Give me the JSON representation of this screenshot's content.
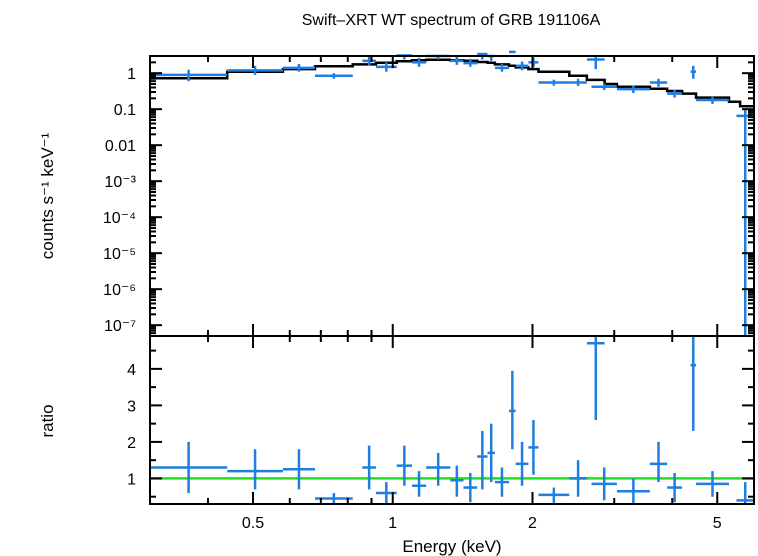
{
  "chart_data": {
    "type": "scatter",
    "title": "Swift–XRT WT spectrum of GRB 191106A",
    "xlabel": "Energy (keV)",
    "x_scale": "log",
    "xlim": [
      0.3,
      6
    ],
    "x_ticks": [
      {
        "value": 0.5,
        "label": "0.5"
      },
      {
        "value": 1,
        "label": "1"
      },
      {
        "value": 2,
        "label": "2"
      },
      {
        "value": 5,
        "label": "5"
      }
    ],
    "top_panel": {
      "ylabel": "counts s⁻¹ keV⁻¹",
      "y_scale": "log",
      "ylim": [
        5e-08,
        3
      ],
      "y_ticks": [
        {
          "value": 1,
          "label": "1"
        },
        {
          "value": 0.1,
          "label": "0.1"
        },
        {
          "value": 0.01,
          "label": "0.01"
        },
        {
          "value": 0.001,
          "label": "10⁻³"
        },
        {
          "value": 0.0001,
          "label": "10⁻⁴"
        },
        {
          "value": 1e-05,
          "label": "10⁻⁵"
        },
        {
          "value": 1e-06,
          "label": "10⁻⁶"
        },
        {
          "value": 1e-07,
          "label": "10⁻⁷"
        }
      ],
      "series": [
        {
          "kind": "data",
          "color": "#1f7fe0",
          "points": [
            {
              "xlo": 0.3,
              "xhi": 0.44,
              "y": 0.9,
              "ylo": 0.6,
              "yhi": 1.25
            },
            {
              "xlo": 0.44,
              "xhi": 0.58,
              "y": 1.2,
              "ylo": 0.9,
              "yhi": 1.6
            },
            {
              "xlo": 0.58,
              "xhi": 0.68,
              "y": 1.4,
              "ylo": 1.1,
              "yhi": 1.8
            },
            {
              "xlo": 0.68,
              "xhi": 0.82,
              "y": 0.85,
              "ylo": 0.7,
              "yhi": 1.0
            },
            {
              "xlo": 0.86,
              "xhi": 0.92,
              "y": 2.2,
              "ylo": 1.6,
              "yhi": 3.2
            },
            {
              "xlo": 0.92,
              "xhi": 1.02,
              "y": 1.5,
              "ylo": 1.1,
              "yhi": 2.0
            },
            {
              "xlo": 1.02,
              "xhi": 1.1,
              "y": 3.1,
              "ylo": 2.4,
              "yhi": 3.9
            },
            {
              "xlo": 1.1,
              "xhi": 1.18,
              "y": 2.0,
              "ylo": 1.5,
              "yhi": 2.7
            },
            {
              "xlo": 1.18,
              "xhi": 1.33,
              "y": 3.0,
              "ylo": 2.4,
              "yhi": 3.7
            },
            {
              "xlo": 1.33,
              "xhi": 1.42,
              "y": 2.2,
              "ylo": 1.7,
              "yhi": 2.9
            },
            {
              "xlo": 1.42,
              "xhi": 1.52,
              "y": 1.9,
              "ylo": 1.5,
              "yhi": 2.5
            },
            {
              "xlo": 1.52,
              "xhi": 1.6,
              "y": 3.4,
              "ylo": 2.4,
              "yhi": 4.6
            },
            {
              "xlo": 1.6,
              "xhi": 1.66,
              "y": 3.0,
              "ylo": 2.2,
              "yhi": 4.0
            },
            {
              "xlo": 1.66,
              "xhi": 1.78,
              "y": 1.4,
              "ylo": 1.1,
              "yhi": 1.8
            },
            {
              "xlo": 1.78,
              "xhi": 1.84,
              "y": 3.9,
              "ylo": 3.0,
              "yhi": 5.2
            },
            {
              "xlo": 1.84,
              "xhi": 1.96,
              "y": 1.6,
              "ylo": 1.2,
              "yhi": 2.1
            },
            {
              "xlo": 1.96,
              "xhi": 2.06,
              "y": 2.0,
              "ylo": 1.5,
              "yhi": 2.7
            },
            {
              "xlo": 2.06,
              "xhi": 2.4,
              "y": 0.55,
              "ylo": 0.45,
              "yhi": 0.66
            },
            {
              "xlo": 2.4,
              "xhi": 2.62,
              "y": 0.55,
              "ylo": 0.44,
              "yhi": 0.7
            },
            {
              "xlo": 2.62,
              "xhi": 2.86,
              "y": 2.4,
              "ylo": 1.3,
              "yhi": 4.2
            },
            {
              "xlo": 2.68,
              "xhi": 3.04,
              "y": 0.42,
              "ylo": 0.34,
              "yhi": 0.52
            },
            {
              "xlo": 3.04,
              "xhi": 3.58,
              "y": 0.36,
              "ylo": 0.28,
              "yhi": 0.45
            },
            {
              "xlo": 3.58,
              "xhi": 3.9,
              "y": 0.55,
              "ylo": 0.42,
              "yhi": 0.7
            },
            {
              "xlo": 3.9,
              "xhi": 4.2,
              "y": 0.27,
              "ylo": 0.21,
              "yhi": 0.34
            },
            {
              "xlo": 4.38,
              "xhi": 4.5,
              "y": 1.1,
              "ylo": 0.7,
              "yhi": 1.6
            },
            {
              "xlo": 4.5,
              "xhi": 5.3,
              "y": 0.18,
              "ylo": 0.14,
              "yhi": 0.23
            },
            {
              "xlo": 5.5,
              "xhi": 6.0,
              "y": 0.065,
              "ylo": 5e-08,
              "yhi": 0.1
            }
          ]
        },
        {
          "kind": "model",
          "color": "#000000",
          "steps": [
            {
              "xlo": 0.3,
              "xhi": 0.44,
              "y": 0.72
            },
            {
              "xlo": 0.44,
              "xhi": 0.58,
              "y": 1.1
            },
            {
              "xlo": 0.58,
              "xhi": 0.68,
              "y": 1.3
            },
            {
              "xlo": 0.68,
              "xhi": 0.82,
              "y": 1.55
            },
            {
              "xlo": 0.82,
              "xhi": 0.92,
              "y": 1.75
            },
            {
              "xlo": 0.92,
              "xhi": 1.02,
              "y": 1.95
            },
            {
              "xlo": 1.02,
              "xhi": 1.1,
              "y": 2.15
            },
            {
              "xlo": 1.1,
              "xhi": 1.18,
              "y": 2.3
            },
            {
              "xlo": 1.18,
              "xhi": 1.33,
              "y": 2.35
            },
            {
              "xlo": 1.33,
              "xhi": 1.42,
              "y": 2.3
            },
            {
              "xlo": 1.42,
              "xhi": 1.52,
              "y": 2.2
            },
            {
              "xlo": 1.52,
              "xhi": 1.6,
              "y": 2.05
            },
            {
              "xlo": 1.6,
              "xhi": 1.66,
              "y": 1.95
            },
            {
              "xlo": 1.66,
              "xhi": 1.78,
              "y": 1.75
            },
            {
              "xlo": 1.78,
              "xhi": 1.84,
              "y": 1.6
            },
            {
              "xlo": 1.84,
              "xhi": 1.96,
              "y": 1.45
            },
            {
              "xlo": 1.96,
              "xhi": 2.06,
              "y": 1.3
            },
            {
              "xlo": 2.06,
              "xhi": 2.4,
              "y": 1.1
            },
            {
              "xlo": 2.4,
              "xhi": 2.62,
              "y": 0.85
            },
            {
              "xlo": 2.62,
              "xhi": 2.86,
              "y": 0.65
            },
            {
              "xlo": 2.86,
              "xhi": 3.04,
              "y": 0.5
            },
            {
              "xlo": 3.04,
              "xhi": 3.58,
              "y": 0.42
            },
            {
              "xlo": 3.58,
              "xhi": 3.9,
              "y": 0.37
            },
            {
              "xlo": 3.9,
              "xhi": 4.2,
              "y": 0.32
            },
            {
              "xlo": 4.2,
              "xhi": 4.5,
              "y": 0.27
            },
            {
              "xlo": 4.5,
              "xhi": 5.3,
              "y": 0.21
            },
            {
              "xlo": 5.3,
              "xhi": 5.6,
              "y": 0.16
            },
            {
              "xlo": 5.6,
              "xhi": 6.0,
              "y": 0.12
            }
          ]
        }
      ]
    },
    "bottom_panel": {
      "ylabel": "ratio",
      "y_scale": "linear",
      "ylim": [
        0.3,
        4.9
      ],
      "y_ticks": [
        {
          "value": 1,
          "label": "1"
        },
        {
          "value": 2,
          "label": "2"
        },
        {
          "value": 3,
          "label": "3"
        },
        {
          "value": 4,
          "label": "4"
        }
      ],
      "reference_line": {
        "y": 1,
        "color": "#22e022"
      },
      "series": [
        {
          "kind": "data",
          "color": "#1f7fe0",
          "points": [
            {
              "xlo": 0.3,
              "xhi": 0.44,
              "y": 1.3,
              "ylo": 0.6,
              "yhi": 2.0
            },
            {
              "xlo": 0.44,
              "xhi": 0.58,
              "y": 1.2,
              "ylo": 0.7,
              "yhi": 1.8
            },
            {
              "xlo": 0.58,
              "xhi": 0.68,
              "y": 1.25,
              "ylo": 0.7,
              "yhi": 1.8
            },
            {
              "xlo": 0.68,
              "xhi": 0.82,
              "y": 0.45,
              "ylo": 0.3,
              "yhi": 0.6
            },
            {
              "xlo": 0.86,
              "xhi": 0.92,
              "y": 1.3,
              "ylo": 0.7,
              "yhi": 1.9
            },
            {
              "xlo": 0.92,
              "xhi": 1.02,
              "y": 0.6,
              "ylo": 0.3,
              "yhi": 0.9
            },
            {
              "xlo": 1.02,
              "xhi": 1.1,
              "y": 1.35,
              "ylo": 0.8,
              "yhi": 1.9
            },
            {
              "xlo": 1.1,
              "xhi": 1.18,
              "y": 0.8,
              "ylo": 0.5,
              "yhi": 1.2
            },
            {
              "xlo": 1.18,
              "xhi": 1.33,
              "y": 1.3,
              "ylo": 0.8,
              "yhi": 1.7
            },
            {
              "xlo": 1.33,
              "xhi": 1.42,
              "y": 0.95,
              "ylo": 0.5,
              "yhi": 1.35
            },
            {
              "xlo": 1.42,
              "xhi": 1.52,
              "y": 0.75,
              "ylo": 0.35,
              "yhi": 1.15
            },
            {
              "xlo": 1.52,
              "xhi": 1.6,
              "y": 1.6,
              "ylo": 0.7,
              "yhi": 2.3
            },
            {
              "xlo": 1.6,
              "xhi": 1.66,
              "y": 1.7,
              "ylo": 0.9,
              "yhi": 2.5
            },
            {
              "xlo": 1.66,
              "xhi": 1.78,
              "y": 0.9,
              "ylo": 0.5,
              "yhi": 1.3
            },
            {
              "xlo": 1.78,
              "xhi": 1.84,
              "y": 2.85,
              "ylo": 1.8,
              "yhi": 3.95
            },
            {
              "xlo": 1.84,
              "xhi": 1.96,
              "y": 1.4,
              "ylo": 0.8,
              "yhi": 2.0
            },
            {
              "xlo": 1.96,
              "xhi": 2.06,
              "y": 1.85,
              "ylo": 1.1,
              "yhi": 2.6
            },
            {
              "xlo": 2.06,
              "xhi": 2.4,
              "y": 0.55,
              "ylo": 0.3,
              "yhi": 0.75
            },
            {
              "xlo": 2.4,
              "xhi": 2.62,
              "y": 1.0,
              "ylo": 0.5,
              "yhi": 1.5
            },
            {
              "xlo": 2.62,
              "xhi": 2.86,
              "y": 4.7,
              "ylo": 2.6,
              "yhi": 4.9
            },
            {
              "xlo": 2.68,
              "xhi": 3.04,
              "y": 0.85,
              "ylo": 0.4,
              "yhi": 1.3
            },
            {
              "xlo": 3.04,
              "xhi": 3.58,
              "y": 0.65,
              "ylo": 0.3,
              "yhi": 1.0
            },
            {
              "xlo": 3.58,
              "xhi": 3.9,
              "y": 1.4,
              "ylo": 0.9,
              "yhi": 2.0
            },
            {
              "xlo": 3.9,
              "xhi": 4.2,
              "y": 0.75,
              "ylo": 0.35,
              "yhi": 1.15
            },
            {
              "xlo": 4.38,
              "xhi": 4.5,
              "y": 4.1,
              "ylo": 2.3,
              "yhi": 4.9
            },
            {
              "xlo": 4.5,
              "xhi": 5.3,
              "y": 0.85,
              "ylo": 0.5,
              "yhi": 1.2
            },
            {
              "xlo": 5.5,
              "xhi": 6.0,
              "y": 0.4,
              "ylo": 0.3,
              "yhi": 0.9
            }
          ]
        }
      ]
    }
  }
}
